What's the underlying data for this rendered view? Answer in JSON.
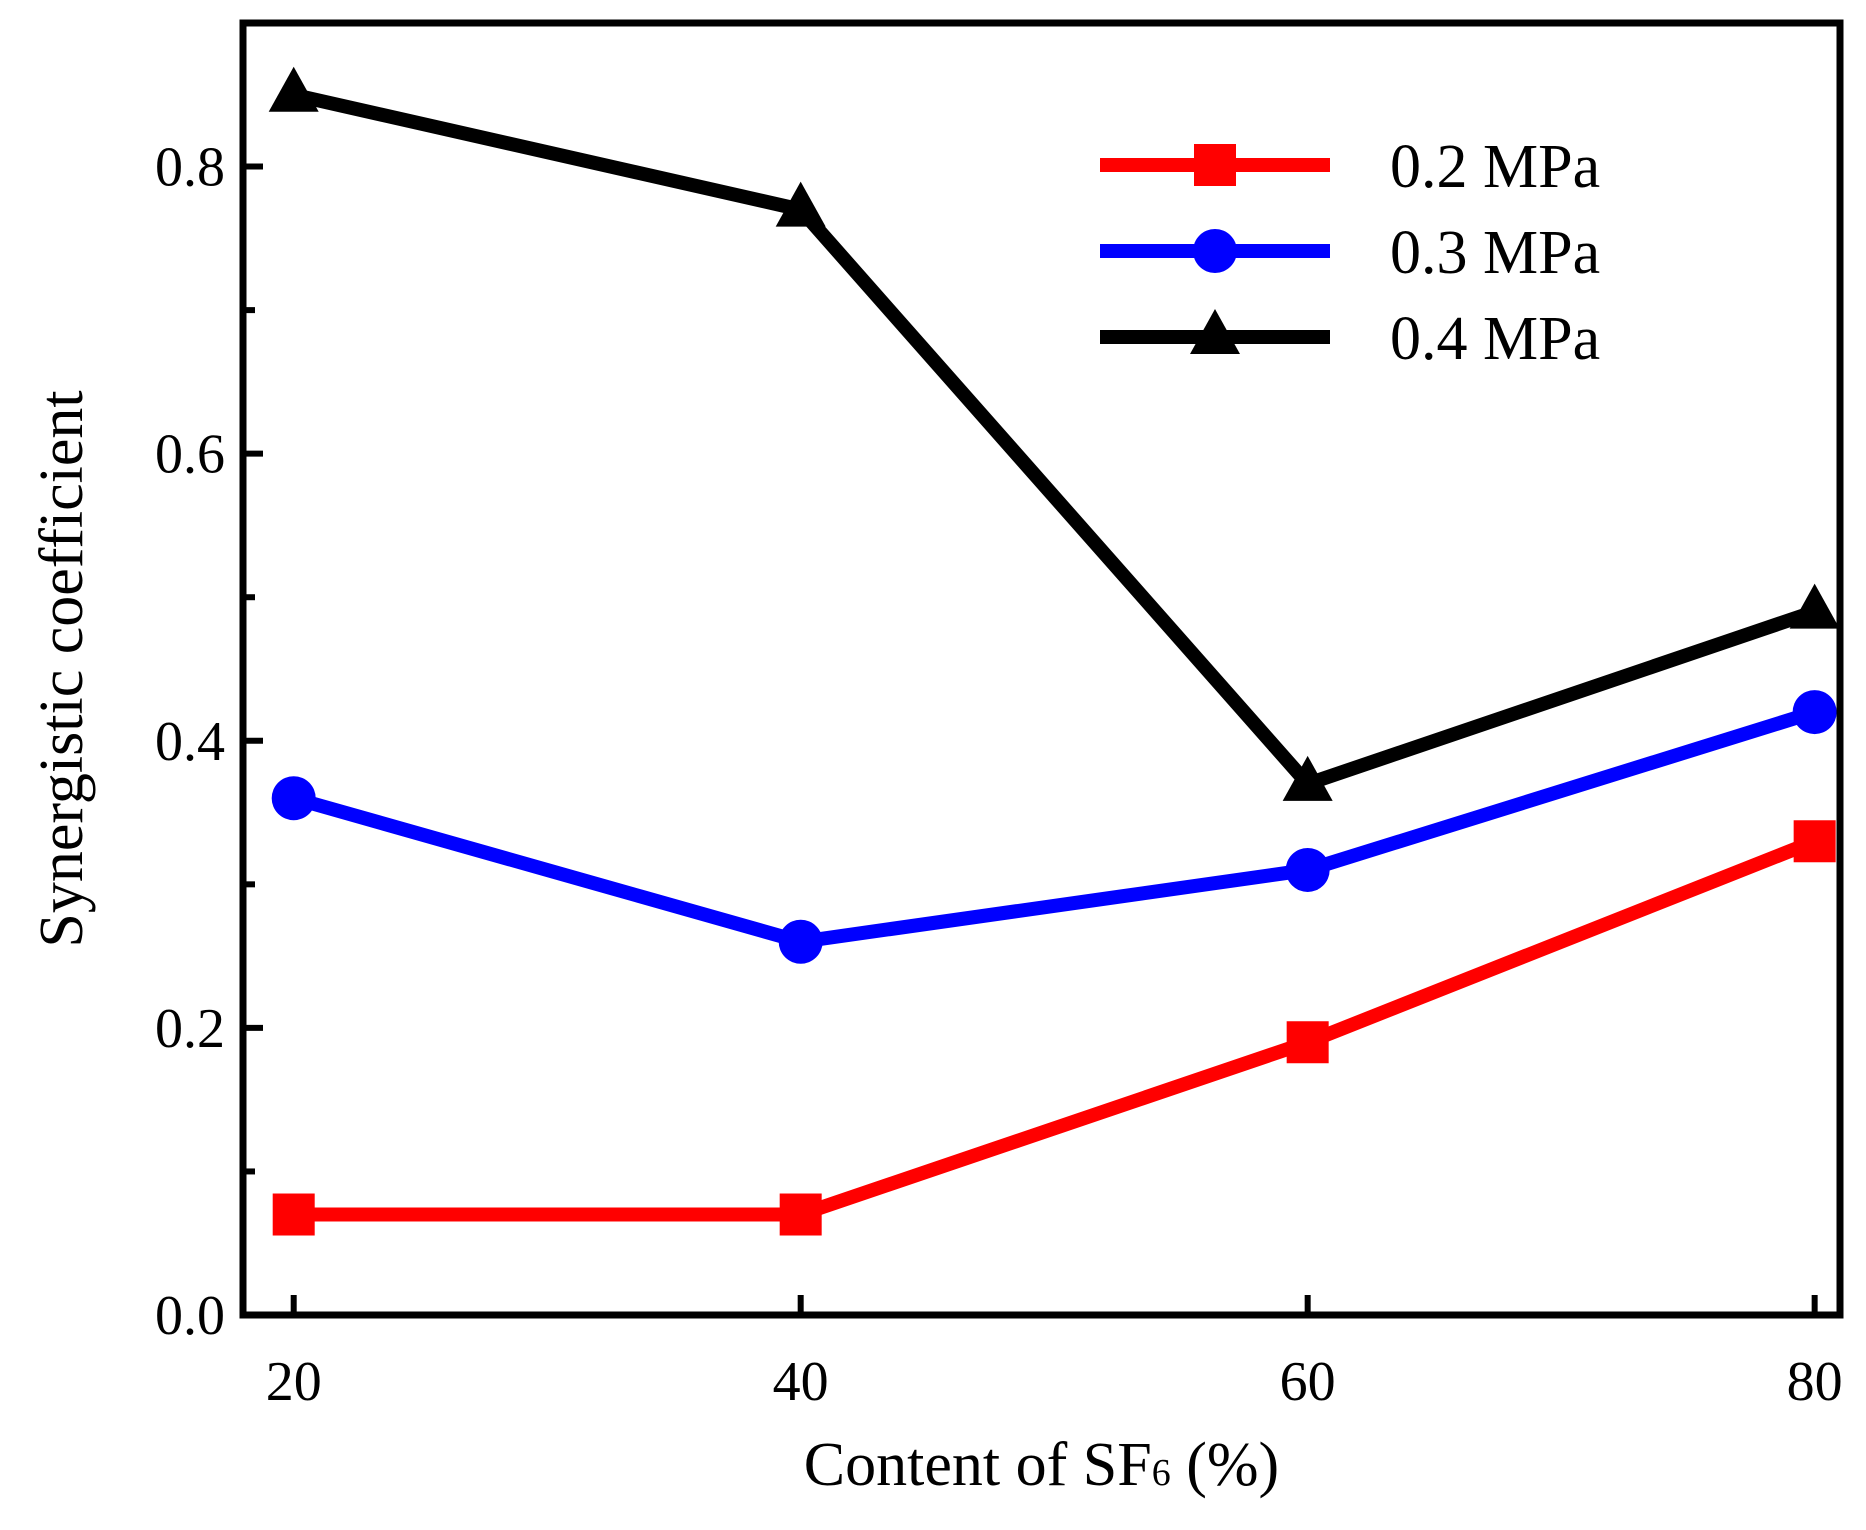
{
  "chart_data": {
    "type": "line",
    "xlabel_main": "Content of SF",
    "xlabel_sub": "6",
    "xlabel_tail": " (%)",
    "ylabel": "Synergistic coefficient",
    "x": [
      20,
      40,
      60,
      80
    ],
    "xticks": [
      "20",
      "40",
      "60",
      "80"
    ],
    "yticks": [
      "0.0",
      "0.2",
      "0.4",
      "0.6",
      "0.8"
    ],
    "ytick_values": [
      0.0,
      0.2,
      0.4,
      0.6,
      0.8
    ],
    "yminor_values": [
      0.1,
      0.3,
      0.5,
      0.7
    ],
    "xlim": [
      18,
      81
    ],
    "ylim": [
      0.0,
      0.9
    ],
    "legend_position": "top-right",
    "series": [
      {
        "name": "0.2 MPa",
        "color": "#ff0000",
        "marker": "square",
        "values": [
          0.07,
          0.07,
          0.19,
          0.33
        ]
      },
      {
        "name": "0.3 MPa",
        "color": "#0000ff",
        "marker": "circle",
        "values": [
          0.36,
          0.26,
          0.31,
          0.42
        ]
      },
      {
        "name": "0.4 MPa",
        "color": "#000000",
        "marker": "triangle",
        "values": [
          0.85,
          0.77,
          0.37,
          0.49
        ]
      }
    ]
  }
}
